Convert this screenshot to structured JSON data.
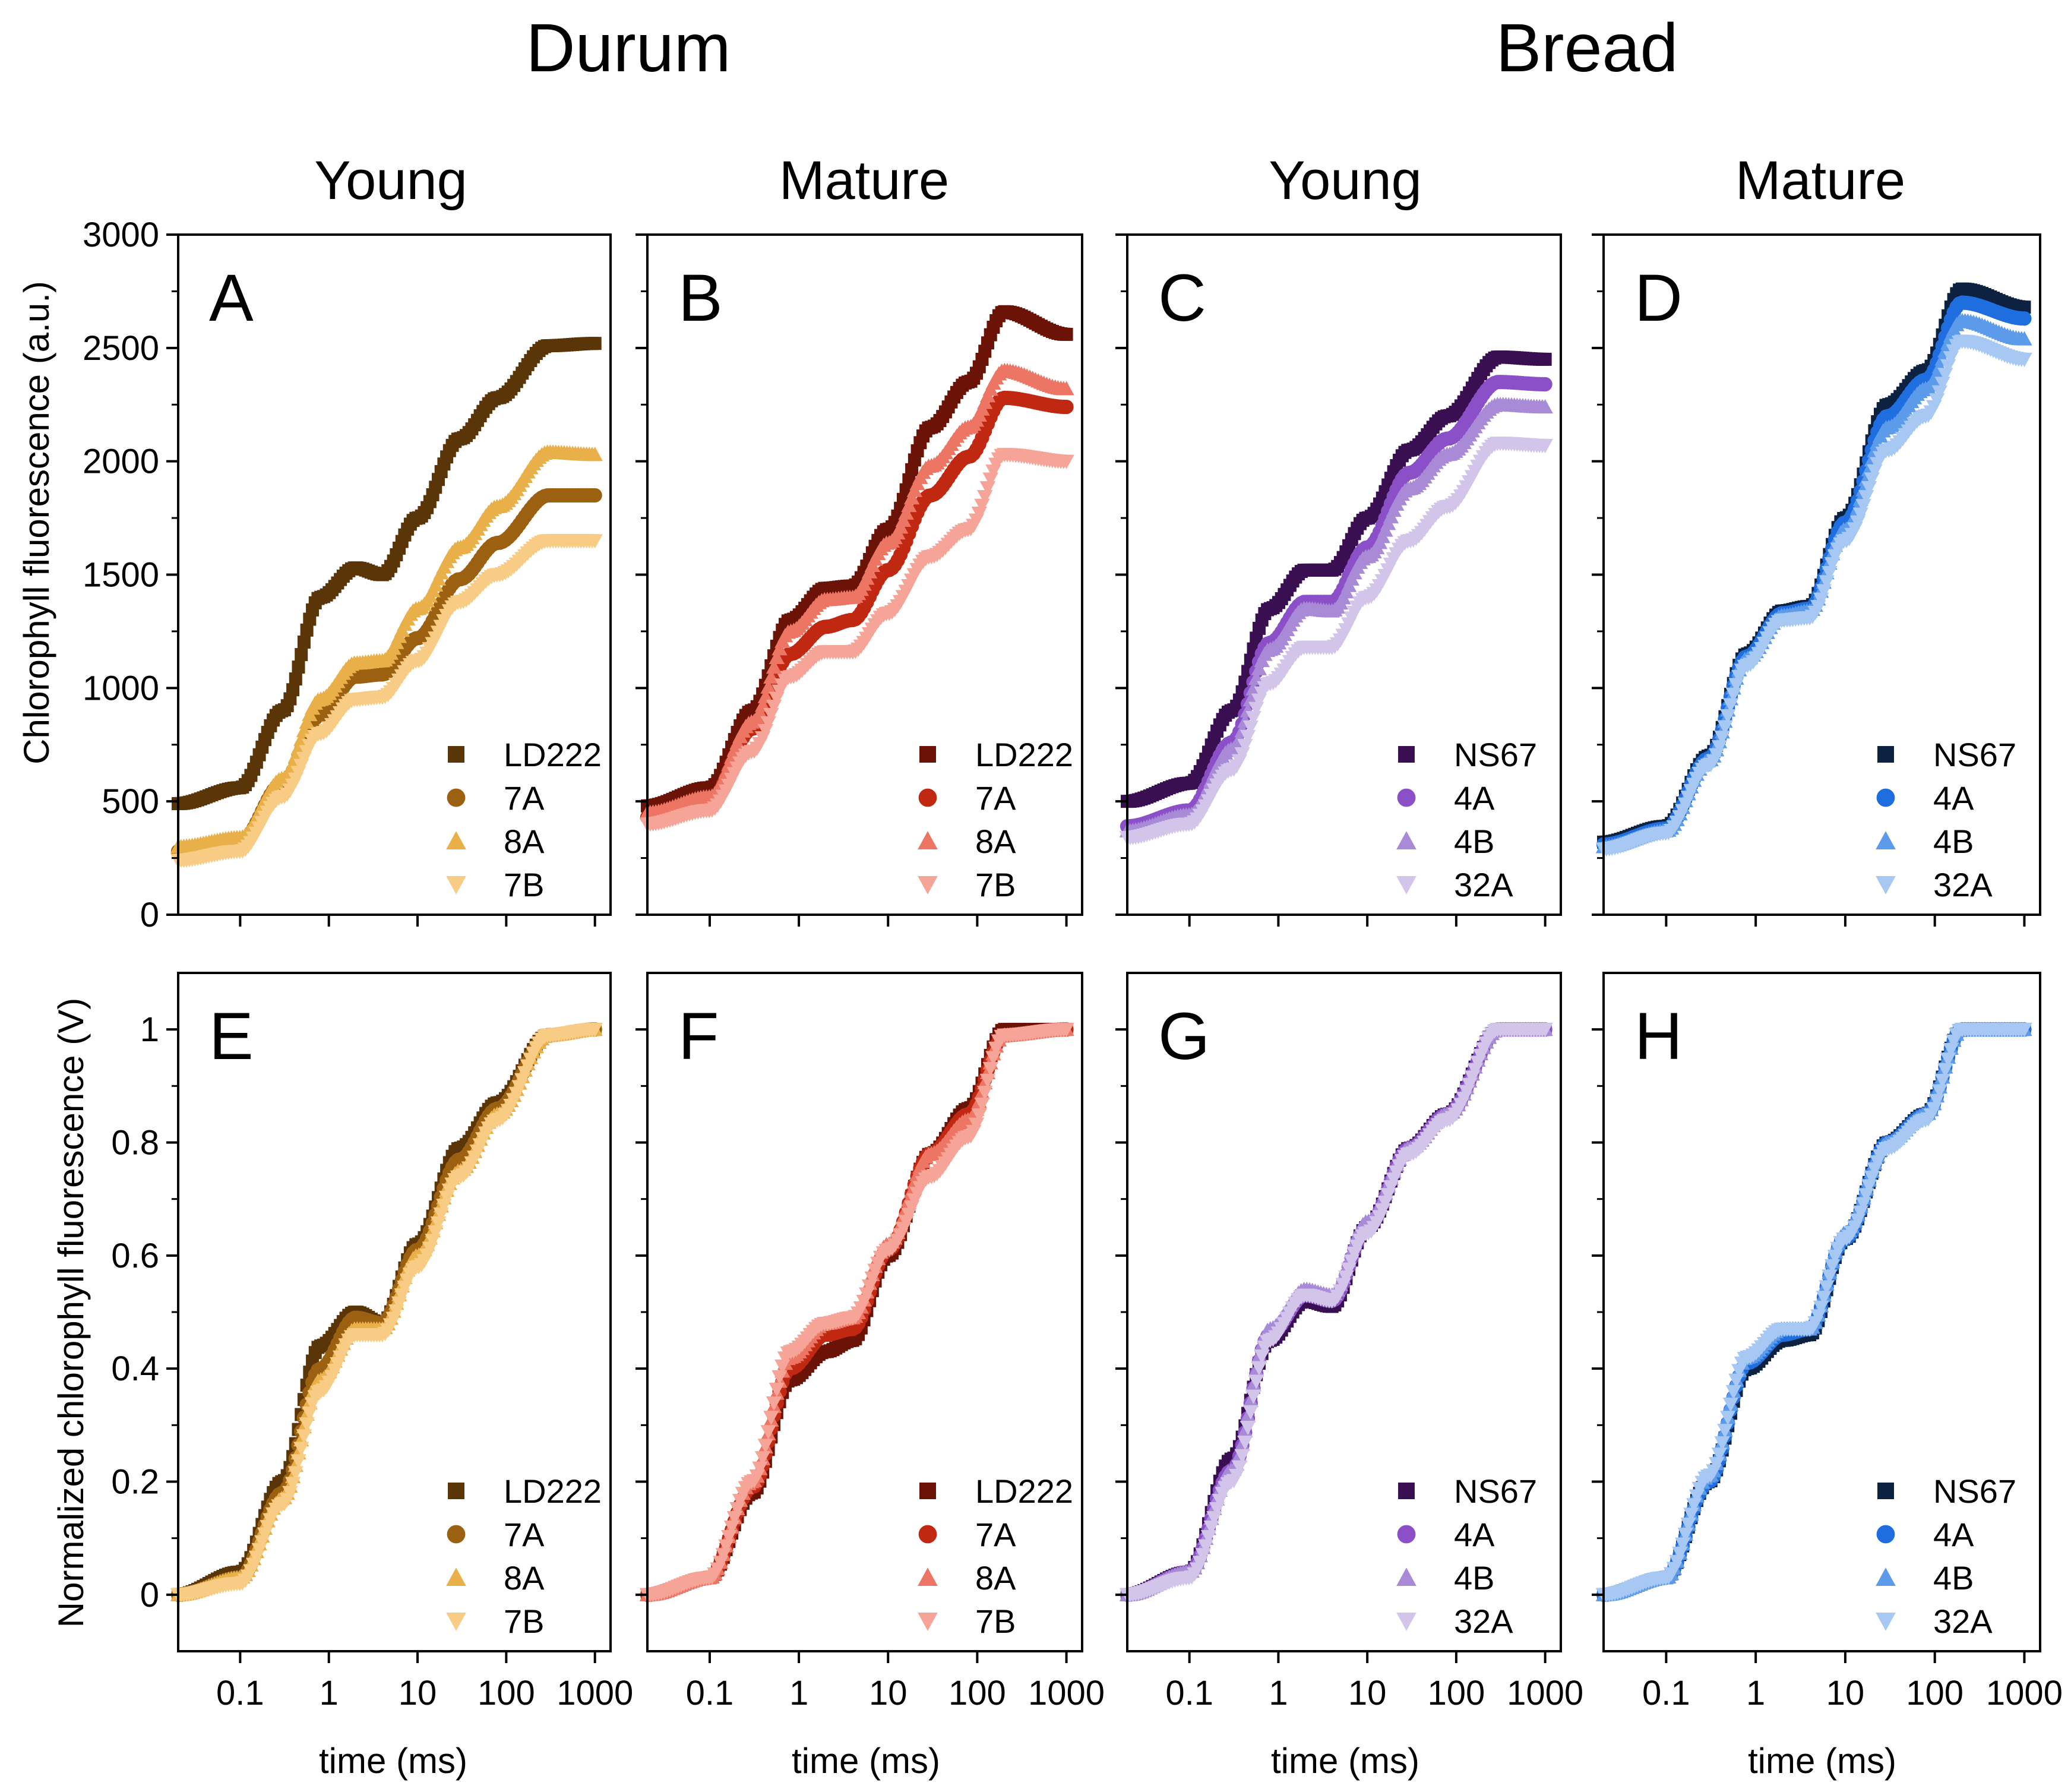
{
  "species_titles": [
    "Durum",
    "Bread"
  ],
  "stage_titles": [
    "Young",
    "Mature",
    "Young",
    "Mature"
  ],
  "axes": {
    "x_label": "time (ms)",
    "y_label_top": "Chlorophyll fluorescence (a.u.)",
    "y_label_bottom": "Normalized chlorophyll fluorescence (V)",
    "x_ticks": [
      "0.1",
      "1",
      "10",
      "100",
      "1000"
    ],
    "y_ticks_top": [
      "0",
      "500",
      "1000",
      "1500",
      "2000",
      "2500",
      "3000"
    ],
    "y_ticks_bottom": [
      "0",
      "0.2",
      "0.4",
      "0.6",
      "0.8",
      "1"
    ]
  },
  "chart_data": [
    {
      "panel": "A",
      "type": "scatter",
      "species": "Durum",
      "stage": "Young",
      "xscale": "log",
      "xlim": [
        0.02,
        1500
      ],
      "ylim": [
        0,
        3000
      ],
      "x": [
        0.02,
        0.1,
        0.3,
        0.8,
        2,
        4,
        10,
        30,
        80,
        300,
        1000
      ],
      "series": [
        {
          "name": "LD222",
          "marker": "square",
          "color": "#5a3508",
          "values": [
            490,
            560,
            900,
            1400,
            1530,
            1500,
            1750,
            2100,
            2280,
            2510,
            2520
          ]
        },
        {
          "name": "7A",
          "marker": "circle",
          "color": "#9c6011",
          "values": [
            280,
            320,
            580,
            880,
            1050,
            1060,
            1220,
            1480,
            1640,
            1850,
            1850
          ]
        },
        {
          "name": "8A",
          "marker": "triangle-up",
          "color": "#e9b04a",
          "values": [
            300,
            340,
            600,
            950,
            1110,
            1120,
            1350,
            1620,
            1800,
            2040,
            2030
          ]
        },
        {
          "name": "7B",
          "marker": "triangle-down",
          "color": "#f8cc84",
          "values": [
            240,
            280,
            520,
            800,
            950,
            960,
            1120,
            1380,
            1500,
            1650,
            1650
          ]
        }
      ]
    },
    {
      "panel": "B",
      "type": "scatter",
      "species": "Durum",
      "stage": "Mature",
      "xscale": "log",
      "xlim": [
        0.02,
        1500
      ],
      "ylim": [
        0,
        3000
      ],
      "x": [
        0.02,
        0.1,
        0.3,
        0.8,
        2,
        4,
        10,
        30,
        80,
        200,
        1000
      ],
      "series": [
        {
          "name": "LD222",
          "marker": "square",
          "color": "#6b1306",
          "values": [
            480,
            560,
            900,
            1300,
            1440,
            1450,
            1700,
            2150,
            2350,
            2660,
            2560
          ]
        },
        {
          "name": "7A",
          "marker": "circle",
          "color": "#c12812",
          "values": [
            430,
            500,
            820,
            1150,
            1270,
            1300,
            1520,
            1850,
            2020,
            2280,
            2240
          ]
        },
        {
          "name": "8A",
          "marker": "triangle-up",
          "color": "#ec7564",
          "values": [
            450,
            520,
            850,
            1250,
            1390,
            1400,
            1640,
            1980,
            2150,
            2400,
            2320
          ]
        },
        {
          "name": "7B",
          "marker": "triangle-down",
          "color": "#f5a497",
          "values": [
            400,
            460,
            720,
            1050,
            1160,
            1160,
            1330,
            1580,
            1700,
            2030,
            2000
          ]
        }
      ]
    },
    {
      "panel": "C",
      "type": "scatter",
      "species": "Bread",
      "stage": "Young",
      "xscale": "log",
      "xlim": [
        0.02,
        1500
      ],
      "ylim": [
        0,
        3000
      ],
      "x": [
        0.02,
        0.1,
        0.3,
        0.8,
        2,
        4,
        10,
        30,
        80,
        300,
        1000
      ],
      "series": [
        {
          "name": "NS67",
          "marker": "square",
          "color": "#3a0f52",
          "values": [
            500,
            580,
            900,
            1350,
            1520,
            1520,
            1750,
            2050,
            2200,
            2460,
            2450
          ]
        },
        {
          "name": "4A",
          "marker": "circle",
          "color": "#8b50c7",
          "values": [
            390,
            460,
            760,
            1200,
            1380,
            1380,
            1620,
            1950,
            2100,
            2350,
            2340
          ]
        },
        {
          "name": "4B",
          "marker": "triangle-up",
          "color": "#a98ad6",
          "values": [
            370,
            440,
            730,
            1170,
            1350,
            1340,
            1580,
            1880,
            2030,
            2250,
            2240
          ]
        },
        {
          "name": "32A",
          "marker": "triangle-down",
          "color": "#d3c4ea",
          "values": [
            340,
            400,
            640,
            1020,
            1180,
            1180,
            1400,
            1650,
            1800,
            2080,
            2070
          ]
        }
      ]
    },
    {
      "panel": "D",
      "type": "scatter",
      "species": "Bread",
      "stage": "Mature",
      "xscale": "log",
      "xlim": [
        0.02,
        1500
      ],
      "ylim": [
        0,
        3000
      ],
      "x": [
        0.02,
        0.1,
        0.3,
        0.8,
        2,
        4,
        10,
        30,
        80,
        200,
        1000
      ],
      "series": [
        {
          "name": "NS67",
          "marker": "square",
          "color": "#0d2140",
          "values": [
            320,
            390,
            700,
            1150,
            1340,
            1360,
            1750,
            2250,
            2400,
            2760,
            2680
          ]
        },
        {
          "name": "4A",
          "marker": "circle",
          "color": "#1f6ee0",
          "values": [
            310,
            380,
            690,
            1140,
            1330,
            1350,
            1730,
            2200,
            2360,
            2700,
            2630
          ]
        },
        {
          "name": "4B",
          "marker": "triangle-up",
          "color": "#5c9aea",
          "values": [
            300,
            370,
            680,
            1130,
            1320,
            1340,
            1700,
            2150,
            2320,
            2620,
            2540
          ]
        },
        {
          "name": "32A",
          "marker": "triangle-down",
          "color": "#a7c8f3",
          "values": [
            290,
            360,
            660,
            1100,
            1300,
            1310,
            1650,
            2050,
            2200,
            2530,
            2450
          ]
        }
      ]
    },
    {
      "panel": "E",
      "type": "scatter",
      "species": "Durum",
      "stage": "Young",
      "xscale": "log",
      "xlim": [
        0.02,
        1500
      ],
      "ylim": [
        -0.1,
        1.1
      ],
      "x": [
        0.02,
        0.1,
        0.3,
        0.8,
        2,
        4,
        10,
        30,
        80,
        300,
        1000
      ],
      "series": [
        {
          "name": "LD222",
          "marker": "square",
          "color": "#5a3508",
          "values": [
            0.0,
            0.04,
            0.2,
            0.44,
            0.5,
            0.48,
            0.62,
            0.79,
            0.87,
            0.99,
            1.0
          ]
        },
        {
          "name": "7A",
          "marker": "circle",
          "color": "#9c6011",
          "values": [
            0.0,
            0.03,
            0.18,
            0.4,
            0.49,
            0.48,
            0.61,
            0.77,
            0.86,
            0.99,
            1.0
          ]
        },
        {
          "name": "8A",
          "marker": "triangle-up",
          "color": "#e9b04a",
          "values": [
            0.0,
            0.03,
            0.17,
            0.38,
            0.47,
            0.47,
            0.6,
            0.75,
            0.85,
            0.99,
            1.0
          ]
        },
        {
          "name": "7B",
          "marker": "triangle-down",
          "color": "#f8cc84",
          "values": [
            0.0,
            0.02,
            0.16,
            0.36,
            0.46,
            0.46,
            0.58,
            0.74,
            0.84,
            0.99,
            1.0
          ]
        }
      ]
    },
    {
      "panel": "F",
      "type": "scatter",
      "species": "Durum",
      "stage": "Mature",
      "xscale": "log",
      "xlim": [
        0.02,
        1500
      ],
      "ylim": [
        -0.1,
        1.1
      ],
      "x": [
        0.02,
        0.1,
        0.3,
        0.8,
        2,
        4,
        10,
        30,
        80,
        200,
        1000
      ],
      "series": [
        {
          "name": "LD222",
          "marker": "square",
          "color": "#6b1306",
          "values": [
            0.0,
            0.03,
            0.18,
            0.38,
            0.43,
            0.45,
            0.6,
            0.78,
            0.86,
            1.0,
            1.0
          ]
        },
        {
          "name": "7A",
          "marker": "circle",
          "color": "#c12812",
          "values": [
            0.0,
            0.03,
            0.19,
            0.4,
            0.46,
            0.47,
            0.61,
            0.78,
            0.85,
            0.99,
            1.0
          ]
        },
        {
          "name": "8A",
          "marker": "triangle-up",
          "color": "#ec7564",
          "values": [
            0.0,
            0.03,
            0.2,
            0.42,
            0.48,
            0.49,
            0.62,
            0.78,
            0.84,
            0.99,
            1.0
          ]
        },
        {
          "name": "7B",
          "marker": "triangle-down",
          "color": "#f5a497",
          "values": [
            0.0,
            0.03,
            0.2,
            0.43,
            0.48,
            0.49,
            0.61,
            0.74,
            0.81,
            0.99,
            1.0
          ]
        }
      ]
    },
    {
      "panel": "G",
      "type": "scatter",
      "species": "Bread",
      "stage": "Young",
      "xscale": "log",
      "xlim": [
        0.02,
        1500
      ],
      "ylim": [
        -0.1,
        1.1
      ],
      "x": [
        0.02,
        0.1,
        0.3,
        0.8,
        2,
        4,
        10,
        30,
        80,
        300,
        1000
      ],
      "series": [
        {
          "name": "NS67",
          "marker": "square",
          "color": "#3a0f52",
          "values": [
            0.0,
            0.04,
            0.24,
            0.45,
            0.52,
            0.51,
            0.65,
            0.79,
            0.85,
            1.0,
            1.0
          ]
        },
        {
          "name": "4A",
          "marker": "circle",
          "color": "#8b50c7",
          "values": [
            0.0,
            0.04,
            0.22,
            0.46,
            0.53,
            0.52,
            0.65,
            0.79,
            0.85,
            1.0,
            1.0
          ]
        },
        {
          "name": "4B",
          "marker": "triangle-up",
          "color": "#a98ad6",
          "values": [
            0.0,
            0.04,
            0.22,
            0.47,
            0.54,
            0.53,
            0.66,
            0.79,
            0.85,
            1.0,
            1.0
          ]
        },
        {
          "name": "32A",
          "marker": "triangle-down",
          "color": "#d3c4ea",
          "values": [
            0.0,
            0.03,
            0.2,
            0.45,
            0.53,
            0.52,
            0.64,
            0.78,
            0.84,
            1.0,
            1.0
          ]
        }
      ]
    },
    {
      "panel": "H",
      "type": "scatter",
      "species": "Bread",
      "stage": "Mature",
      "xscale": "log",
      "xlim": [
        0.02,
        1500
      ],
      "ylim": [
        -0.1,
        1.1
      ],
      "x": [
        0.02,
        0.1,
        0.3,
        0.8,
        2,
        4,
        10,
        30,
        80,
        200,
        1000
      ],
      "series": [
        {
          "name": "NS67",
          "marker": "square",
          "color": "#0d2140",
          "values": [
            0.0,
            0.03,
            0.2,
            0.4,
            0.45,
            0.46,
            0.63,
            0.8,
            0.85,
            1.0,
            1.0
          ]
        },
        {
          "name": "4A",
          "marker": "circle",
          "color": "#1f6ee0",
          "values": [
            0.0,
            0.03,
            0.2,
            0.41,
            0.46,
            0.47,
            0.63,
            0.8,
            0.85,
            1.0,
            1.0
          ]
        },
        {
          "name": "4B",
          "marker": "triangle-up",
          "color": "#5c9aea",
          "values": [
            0.0,
            0.03,
            0.21,
            0.42,
            0.47,
            0.47,
            0.64,
            0.8,
            0.85,
            1.0,
            1.0
          ]
        },
        {
          "name": "32A",
          "marker": "triangle-down",
          "color": "#a7c8f3",
          "values": [
            0.0,
            0.03,
            0.21,
            0.42,
            0.47,
            0.47,
            0.63,
            0.79,
            0.84,
            1.0,
            1.0
          ]
        }
      ]
    }
  ]
}
